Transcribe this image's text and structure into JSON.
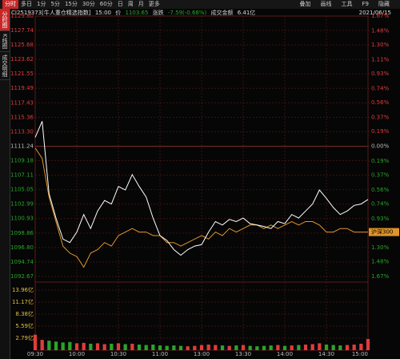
{
  "toolbar": {
    "tabs": [
      "分时",
      "多日",
      "1分",
      "5分",
      "15分",
      "30分",
      "60分",
      "日",
      "周",
      "月",
      "更多"
    ],
    "tools": [
      "叠加",
      "画线",
      "工具",
      "F9",
      "隐藏"
    ]
  },
  "side_tabs": [
    "分时图",
    "K线图",
    "成交明细"
  ],
  "info": {
    "name": "CI2519373[牛人重仓精选指数]",
    "time": "15:00",
    "price_label": "价",
    "price": "1103.65",
    "change_label": "涨跌",
    "change": "-7.59(-0.68%)",
    "amount_label": "成交金额",
    "amount": "6.41亿",
    "date": "2021/06/15"
  },
  "chart_data": [
    {
      "type": "line",
      "x": [
        0,
        5,
        10,
        15,
        20,
        25,
        30,
        35,
        40,
        45,
        50,
        55,
        60,
        65,
        70,
        75,
        80,
        85,
        90,
        95,
        100,
        105,
        110,
        115,
        120,
        125,
        130,
        135,
        140,
        145,
        150,
        155,
        160,
        165,
        170,
        175,
        180,
        185,
        190,
        195,
        200,
        205,
        210,
        215,
        220,
        225,
        230,
        235,
        240
      ],
      "xlim": [
        0,
        240
      ],
      "xticks": [
        {
          "value": 0,
          "label": "09:30"
        },
        {
          "value": 30,
          "label": "10:00"
        },
        {
          "value": 60,
          "label": "10:30"
        },
        {
          "value": 90,
          "label": "11:00"
        },
        {
          "value": 120,
          "label": "13:00"
        },
        {
          "value": 150,
          "label": "13:30"
        },
        {
          "value": 180,
          "label": "14:00"
        },
        {
          "value": 210,
          "label": "14:30"
        },
        {
          "value": 240,
          "label": "15:00"
        }
      ],
      "series": [
        {
          "color": "#ffffff",
          "values": [
            1112.5,
            1114.8,
            1104.5,
            1101.0,
            1098.0,
            1097.5,
            1099.0,
            1101.5,
            1099.5,
            1102.0,
            1103.5,
            1103.0,
            1105.5,
            1105.0,
            1107.2,
            1105.5,
            1104.0,
            1101.0,
            1098.5,
            1097.8,
            1096.5,
            1095.7,
            1096.5,
            1097.0,
            1097.2,
            1099.0,
            1100.5,
            1100.0,
            1100.8,
            1100.5,
            1101.0,
            1100.2,
            1100.0,
            1099.8,
            1099.5,
            1100.5,
            1100.2,
            1101.5,
            1101.0,
            1102.0,
            1103.0,
            1105.0,
            1103.8,
            1102.5,
            1101.5,
            1102.0,
            1102.8,
            1103.0,
            1103.65
          ]
        },
        {
          "name": "沪深300",
          "color": "#e0952a",
          "values": [
            1111.0,
            1109.5,
            1104.0,
            1100.5,
            1097.0,
            1096.0,
            1095.5,
            1094.0,
            1096.0,
            1096.5,
            1097.5,
            1097.0,
            1098.5,
            1099.0,
            1099.5,
            1099.0,
            1099.0,
            1098.5,
            1098.5,
            1097.5,
            1097.5,
            1097.0,
            1097.5,
            1098.0,
            1098.5,
            1098.0,
            1099.0,
            1098.5,
            1099.5,
            1099.0,
            1099.5,
            1100.0,
            1100.0,
            1099.5,
            1100.0,
            1099.5,
            1100.0,
            1100.5,
            1100.0,
            1100.5,
            1100.5,
            1100.0,
            1099.0,
            1099.0,
            1099.5,
            1099.5,
            1099.0,
            1099.0,
            1099.0
          ]
        }
      ],
      "ylim": [
        1092.67,
        1129.8
      ],
      "yticks": [
        {
          "value": 1129.8,
          "label": "1129.80"
        },
        {
          "value": 1127.74,
          "label": "1127.74"
        },
        {
          "value": 1125.68,
          "label": "1125.68"
        },
        {
          "value": 1123.62,
          "label": "1123.62"
        },
        {
          "value": 1121.55,
          "label": "1121.55"
        },
        {
          "value": 1119.49,
          "label": "1119.49"
        },
        {
          "value": 1117.43,
          "label": "1117.43"
        },
        {
          "value": 1115.36,
          "label": "1115.36"
        },
        {
          "value": 1113.3,
          "label": "1113.30"
        },
        {
          "value": 1111.24,
          "label": "1111.24"
        },
        {
          "value": 1109.18,
          "label": "1109.18"
        },
        {
          "value": 1107.11,
          "label": "1107.11"
        },
        {
          "value": 1105.05,
          "label": "1105.05"
        },
        {
          "value": 1102.99,
          "label": "1102.99"
        },
        {
          "value": 1100.93,
          "label": "1100.93"
        },
        {
          "value": 1098.86,
          "label": "1098.86"
        },
        {
          "value": 1096.8,
          "label": "1096.80"
        },
        {
          "value": 1094.74,
          "label": "1094.74"
        },
        {
          "value": 1092.67,
          "label": "1092.67"
        }
      ],
      "y2lim": [
        -1.67,
        1.67
      ],
      "y2ticks": [
        {
          "value": 1.67,
          "label": "1.67%"
        },
        {
          "value": 1.48,
          "label": "1.48%"
        },
        {
          "value": 1.3,
          "label": "1.30%"
        },
        {
          "value": 1.11,
          "label": "1.11%"
        },
        {
          "value": 0.93,
          "label": "0.93%"
        },
        {
          "value": 0.74,
          "label": "0.74%"
        },
        {
          "value": 0.56,
          "label": "0.56%"
        },
        {
          "value": 0.37,
          "label": "0.37%"
        },
        {
          "value": 0.19,
          "label": "0.19%"
        },
        {
          "value": 0,
          "label": "0.00%"
        },
        {
          "value": -0.19,
          "label": "0.19%"
        },
        {
          "value": -0.37,
          "label": "0.37%"
        },
        {
          "value": -0.56,
          "label": "0.56%"
        },
        {
          "value": -0.74,
          "label": "0.74%"
        },
        {
          "value": -0.93,
          "label": "0.93%"
        },
        {
          "value": -1.11,
          "label": "1.11%"
        },
        {
          "value": -1.3,
          "label": "1.30%"
        },
        {
          "value": -1.48,
          "label": "1.48%"
        },
        {
          "value": -1.67,
          "label": "1.67%"
        }
      ],
      "grid": true
    },
    {
      "type": "bar",
      "x": [
        0,
        5,
        10,
        15,
        20,
        25,
        30,
        35,
        40,
        45,
        50,
        55,
        60,
        65,
        70,
        75,
        80,
        85,
        90,
        95,
        100,
        105,
        110,
        115,
        120,
        125,
        130,
        135,
        140,
        145,
        150,
        155,
        160,
        165,
        170,
        175,
        180,
        185,
        190,
        195,
        200,
        205,
        210,
        215,
        220,
        225,
        230,
        235,
        240
      ],
      "xlim": [
        0,
        240
      ],
      "values": [
        3.6,
        2.4,
        2.2,
        2.0,
        1.8,
        1.9,
        1.6,
        1.7,
        1.5,
        1.6,
        1.4,
        1.5,
        1.6,
        1.4,
        1.5,
        1.3,
        1.2,
        1.3,
        1.1,
        1.0,
        1.1,
        1.0,
        0.9,
        1.0,
        1.2,
        1.3,
        1.2,
        1.1,
        1.0,
        1.1,
        1.2,
        1.0,
        0.9,
        1.0,
        1.1,
        1.2,
        1.0,
        1.1,
        1.2,
        1.3,
        1.4,
        1.6,
        1.3,
        1.2,
        1.1,
        1.2,
        1.3,
        1.5,
        2.6
      ],
      "colors": [
        "#e23b3b",
        "#e23b3b",
        "#2aa52a",
        "#2aa52a",
        "#2aa52a",
        "#2aa52a",
        "#e23b3b",
        "#e23b3b",
        "#2aa52a",
        "#e23b3b",
        "#e23b3b",
        "#2aa52a",
        "#e23b3b",
        "#2aa52a",
        "#e23b3b",
        "#2aa52a",
        "#2aa52a",
        "#2aa52a",
        "#2aa52a",
        "#2aa52a",
        "#2aa52a",
        "#2aa52a",
        "#e23b3b",
        "#e23b3b",
        "#e23b3b",
        "#e23b3b",
        "#e23b3b",
        "#2aa52a",
        "#e23b3b",
        "#2aa52a",
        "#e23b3b",
        "#2aa52a",
        "#2aa52a",
        "#2aa52a",
        "#2aa52a",
        "#e23b3b",
        "#2aa52a",
        "#e23b3b",
        "#2aa52a",
        "#e23b3b",
        "#e23b3b",
        "#e23b3b",
        "#2aa52a",
        "#2aa52a",
        "#2aa52a",
        "#e23b3b",
        "#e23b3b",
        "#e23b3b",
        "#e23b3b"
      ],
      "ylim": [
        0,
        13.96
      ],
      "yticks": [
        {
          "value": 13.96,
          "label": "13.96亿"
        },
        {
          "value": 11.17,
          "label": "11.17亿"
        },
        {
          "value": 8.38,
          "label": "8.38亿"
        },
        {
          "value": 5.59,
          "label": "5.59亿"
        },
        {
          "value": 2.79,
          "label": "2.79亿"
        }
      ],
      "grid": true
    }
  ]
}
